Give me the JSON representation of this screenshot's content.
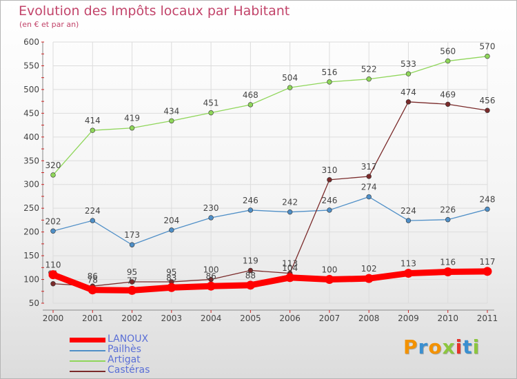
{
  "chart_data": {
    "type": "line",
    "title": "Evolution des Impôts locaux par Habitant",
    "subtitle": "(en € et par an)",
    "x": [
      "2000",
      "2001",
      "2002",
      "2003",
      "2004",
      "2005",
      "2006",
      "2007",
      "2008",
      "2009",
      "2010",
      "2011"
    ],
    "ylim": [
      50,
      600
    ],
    "yticks": [
      50,
      100,
      150,
      200,
      250,
      300,
      350,
      400,
      450,
      500,
      550,
      600
    ],
    "grid": true,
    "legend_position": "bottom-left",
    "series": [
      {
        "name": "LANOUX",
        "color": "#ff0000",
        "values": [
          110,
          78,
          77,
          83,
          86,
          88,
          104,
          100,
          102,
          113,
          116,
          117
        ],
        "labels": [
          "110",
          "78",
          "77",
          "83",
          "86",
          "88",
          "104",
          "100",
          "102",
          "113",
          "116",
          "117"
        ]
      },
      {
        "name": "Pailhès",
        "color": "#4f8fc7",
        "values": [
          202,
          224,
          173,
          204,
          230,
          246,
          242,
          246,
          274,
          224,
          226,
          248
        ],
        "labels": [
          "202",
          "224",
          "173",
          "204",
          "230",
          "246",
          "242",
          "246",
          "274",
          "224",
          "226",
          "248"
        ]
      },
      {
        "name": "Artigat",
        "color": "#8fd65a",
        "values": [
          320,
          414,
          419,
          434,
          451,
          468,
          504,
          516,
          522,
          533,
          560,
          570
        ],
        "labels": [
          "320",
          "414",
          "419",
          "434",
          "451",
          "468",
          "504",
          "516",
          "522",
          "533",
          "560",
          "570"
        ]
      },
      {
        "name": "Castéras",
        "color": "#7a2a2a",
        "values": [
          91,
          86,
          95,
          95,
          100,
          119,
          113,
          310,
          317,
          474,
          469,
          456
        ],
        "labels": [
          "91",
          "86",
          "95",
          "95",
          "100",
          "119",
          "113",
          "310",
          "317",
          "474",
          "469",
          "456"
        ]
      }
    ]
  },
  "logo": {
    "text": "Proxiti",
    "colors": [
      "#f39200",
      "#3a8fd0",
      "#f39200",
      "#8cc63f",
      "#e5332a",
      "#3a8fd0",
      "#8cc63f"
    ]
  }
}
